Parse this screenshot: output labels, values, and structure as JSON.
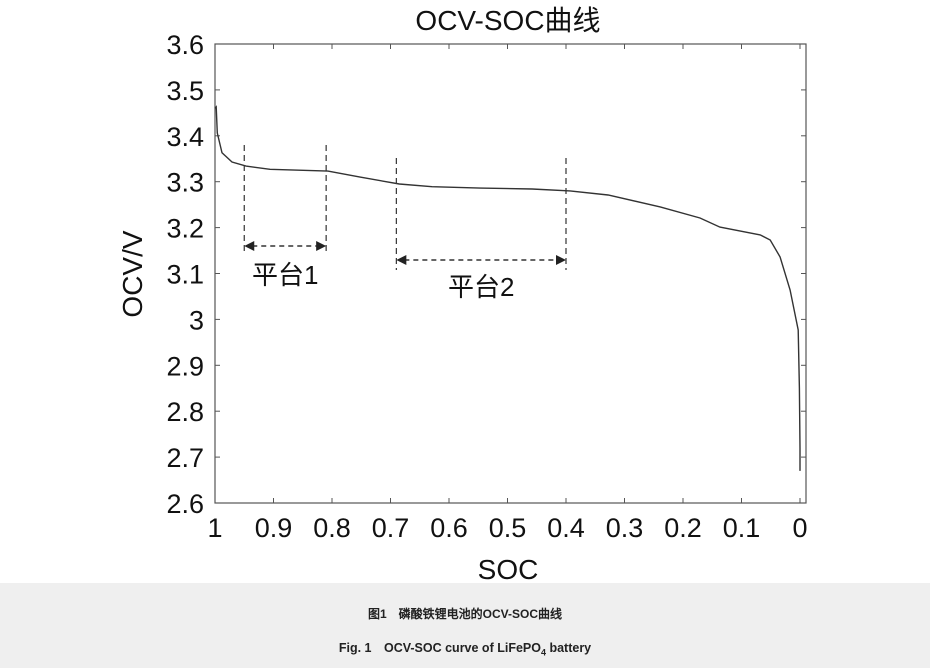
{
  "chart_data": {
    "type": "line",
    "title": "OCV-SOC曲线",
    "xlabel": "SOC",
    "ylabel": "OCV/V",
    "xlim": [
      1,
      0
    ],
    "ylim": [
      2.6,
      3.6
    ],
    "x_reversed": true,
    "grid": false,
    "xticks": [
      "1",
      "0.9",
      "0.8",
      "0.7",
      "0.6",
      "0.5",
      "0.4",
      "0.3",
      "0.2",
      "0.1",
      "0"
    ],
    "xtick_values": [
      1,
      0.9,
      0.8,
      0.7,
      0.6,
      0.5,
      0.4,
      0.3,
      0.2,
      0.1,
      0
    ],
    "yticks": [
      "3.6",
      "3.5",
      "3.4",
      "3.3",
      "3.2",
      "3.1",
      "3",
      "2.9",
      "2.8",
      "2.7",
      "2.6"
    ],
    "ytick_values": [
      3.6,
      3.5,
      3.4,
      3.3,
      3.2,
      3.1,
      3.0,
      2.9,
      2.8,
      2.7,
      2.6
    ],
    "series": [
      {
        "color": "#333333",
        "x": [
          1.0,
          0.998,
          0.996,
          0.988,
          0.971,
          0.947,
          0.906,
          0.807,
          0.752,
          0.685,
          0.629,
          0.547,
          0.458,
          0.393,
          0.328,
          0.239,
          0.171,
          0.137,
          0.068,
          0.051,
          0.034,
          0.017,
          0.003,
          0.001,
          0.0,
          0.0
        ],
        "y": [
          3.46,
          3.463,
          3.406,
          3.363,
          3.343,
          3.334,
          3.327,
          3.323,
          3.31,
          3.295,
          3.289,
          3.286,
          3.284,
          3.28,
          3.271,
          3.245,
          3.221,
          3.201,
          3.184,
          3.173,
          3.136,
          3.064,
          2.977,
          2.85,
          2.72,
          2.67
        ]
      }
    ],
    "annotations": [
      {
        "label": "平台1",
        "soc_from": 0.95,
        "soc_to": 0.81
      },
      {
        "label": "平台2",
        "soc_from": 0.69,
        "soc_to": 0.4
      }
    ]
  },
  "caption": {
    "cn": "图1　磷酸铁锂电池的OCV-SOC曲线",
    "en_prefix": "Fig. 1　OCV-SOC curve of LiFePO",
    "en_sub": "4",
    "en_suffix": " battery"
  }
}
